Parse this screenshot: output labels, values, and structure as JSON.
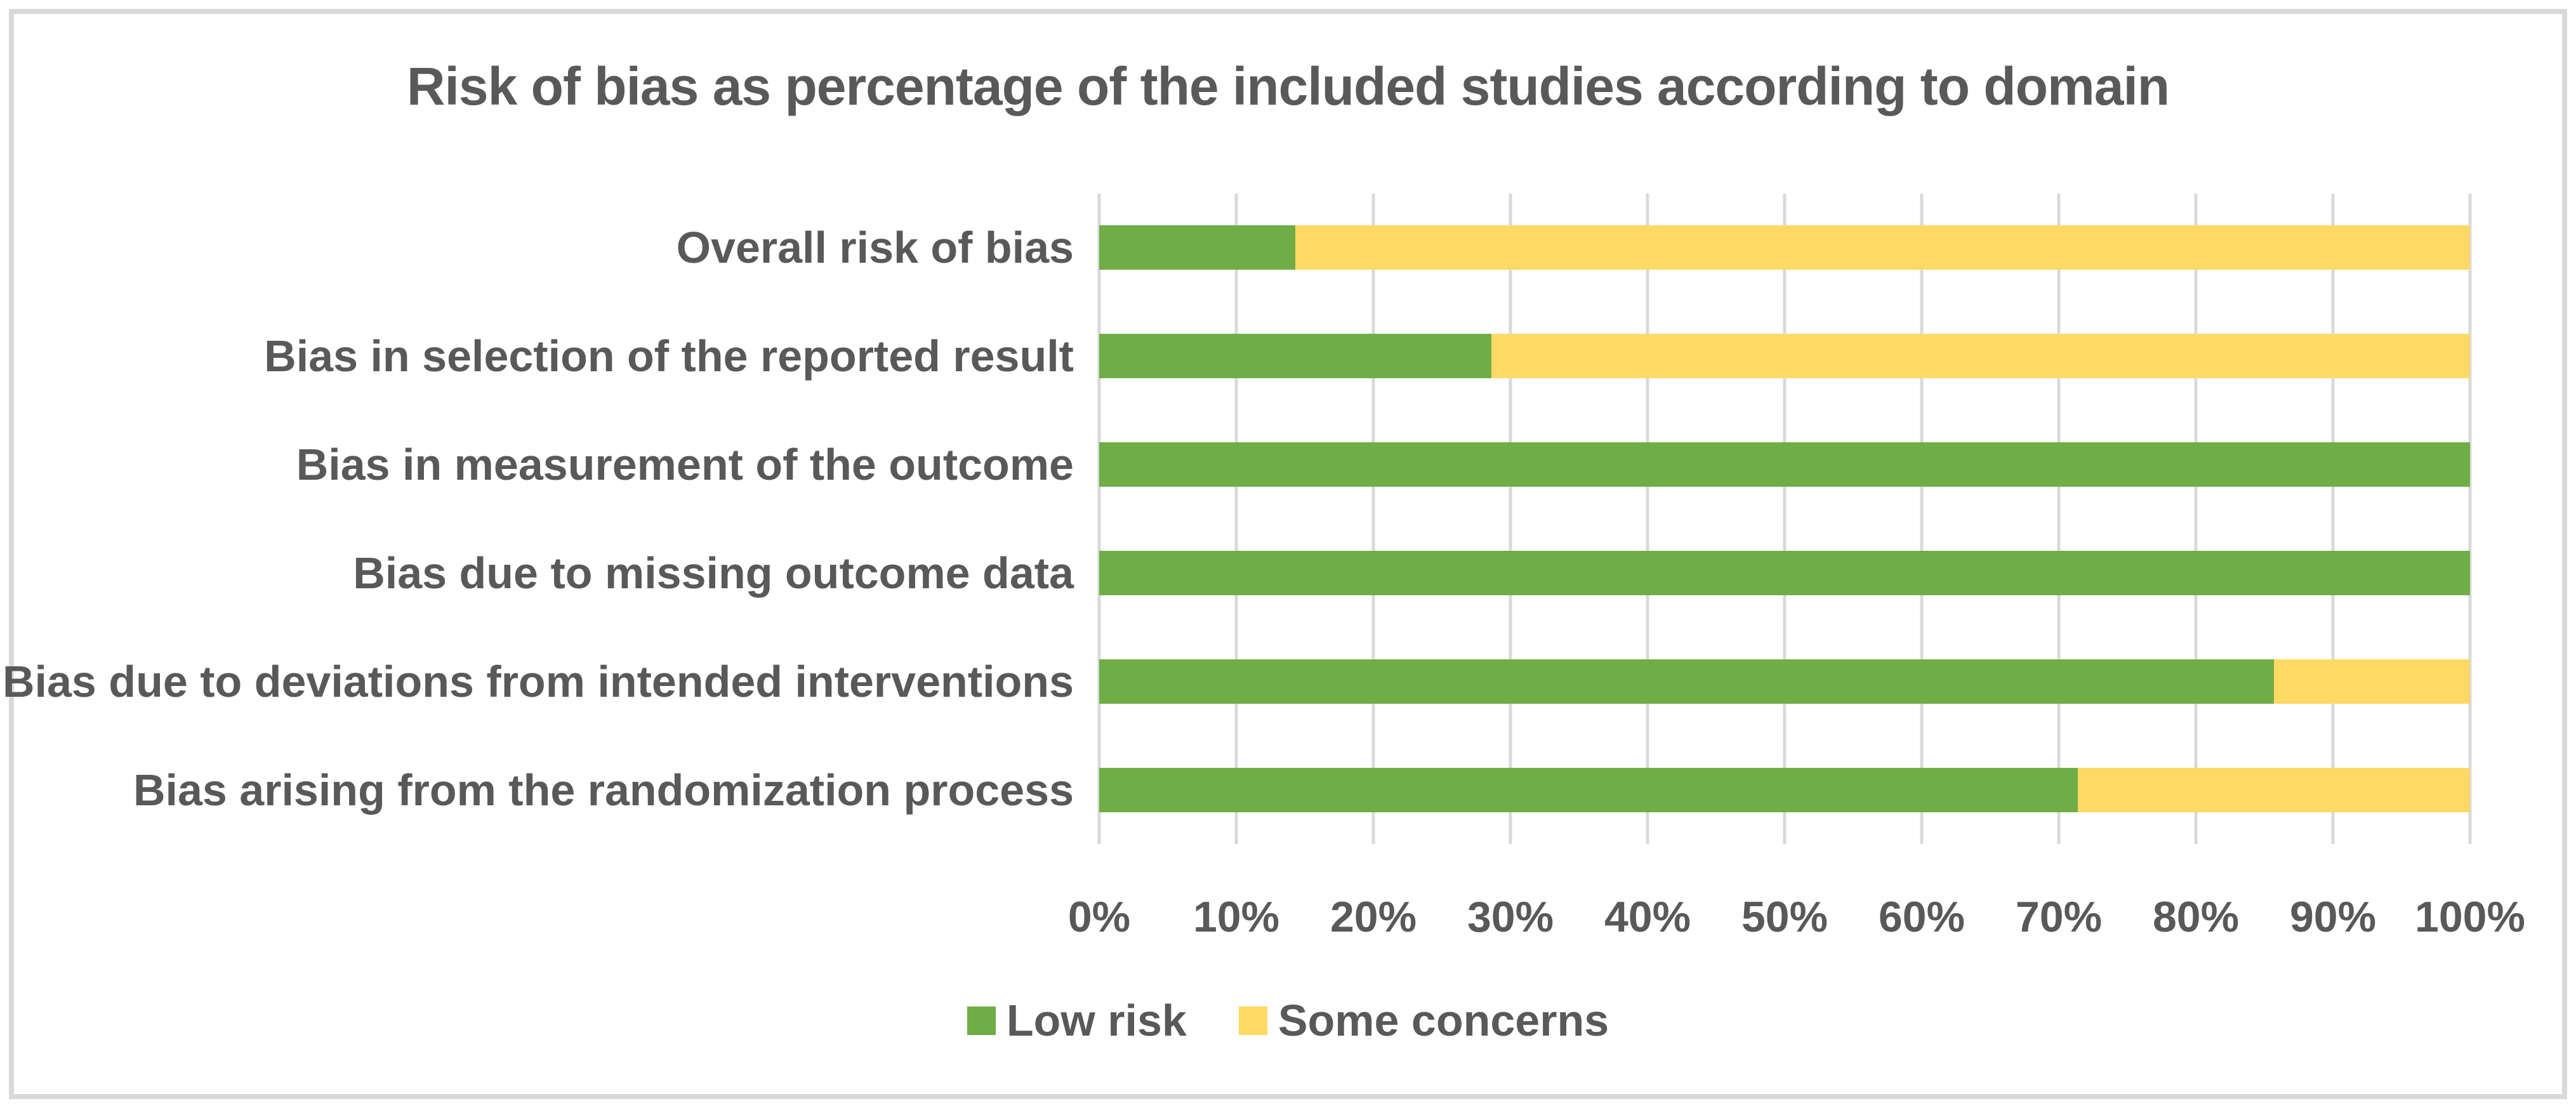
{
  "figure": {
    "frame_border_color": "#D9D9D9",
    "background_color": "#FFFFFF",
    "text_color": "#595959"
  },
  "chart_data": {
    "type": "bar",
    "orientation": "horizontal-stacked",
    "title": "Risk of bias as percentage of the included studies according to domain",
    "categories": [
      "Overall risk of bias",
      "Bias in selection of the reported result",
      "Bias in measurement of the outcome",
      "Bias due to missing outcome data",
      "Bias due to deviations from intended interventions",
      "Bias arising from the randomization process"
    ],
    "series": [
      {
        "name": "Low risk",
        "color": "#70AD47",
        "values": [
          14.3,
          28.6,
          100,
          100,
          85.7,
          71.4
        ]
      },
      {
        "name": "Some concerns",
        "color": "#FFD966",
        "values": [
          85.7,
          71.4,
          0,
          0,
          14.3,
          28.6
        ]
      }
    ],
    "xlim": [
      0,
      100
    ],
    "x_ticks": [
      "0%",
      "10%",
      "20%",
      "30%",
      "40%",
      "50%",
      "60%",
      "70%",
      "80%",
      "90%",
      "100%"
    ],
    "grid": "vertical",
    "gridline_color": "#D9D9D9",
    "legend_position": "bottom-center"
  }
}
